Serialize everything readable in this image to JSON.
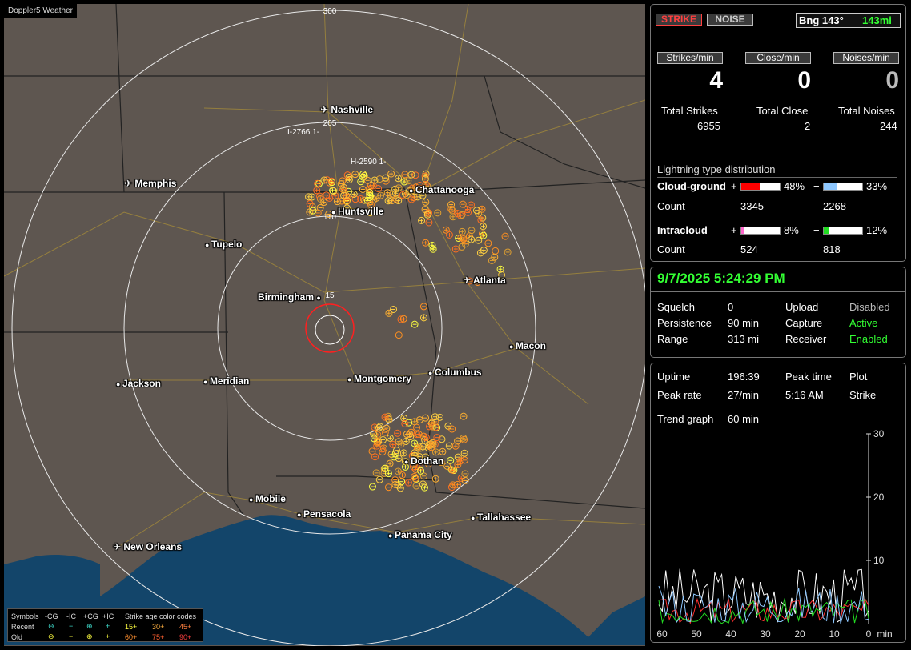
{
  "window_title": "Doppler5 Weather",
  "map": {
    "range_rings": [
      "300",
      "205",
      "110",
      "15"
    ],
    "cities": [
      {
        "name": "Nashville",
        "type": "airport"
      },
      {
        "name": "Memphis",
        "type": "airport"
      },
      {
        "name": "Chattanooga",
        "type": "city"
      },
      {
        "name": "Huntsville",
        "type": "city"
      },
      {
        "name": "Tupelo",
        "type": "city"
      },
      {
        "name": "Birmingham",
        "type": "city"
      },
      {
        "name": "Atlanta",
        "type": "airport"
      },
      {
        "name": "Macon",
        "type": "city"
      },
      {
        "name": "Columbus",
        "type": "city"
      },
      {
        "name": "Montgomery",
        "type": "city"
      },
      {
        "name": "Jackson",
        "type": "city"
      },
      {
        "name": "Meridian",
        "type": "city"
      },
      {
        "name": "Dothan",
        "type": "city"
      },
      {
        "name": "Mobile",
        "type": "city"
      },
      {
        "name": "Pensacola",
        "type": "city"
      },
      {
        "name": "Tallahassee",
        "type": "city"
      },
      {
        "name": "Panama City",
        "type": "city"
      },
      {
        "name": "New Orleans",
        "type": "airport"
      }
    ],
    "storm_tags": [
      "I-2766 1-",
      "H-2590 1-"
    ]
  },
  "legend": {
    "symbols_label": "Symbols",
    "col_neg_cg": "-CG",
    "col_neg_ic": "-IC",
    "col_pos_cg": "+CG",
    "col_pos_ic": "+IC",
    "recent": "Recent",
    "old": "Old",
    "age_title": "Strike age color codes",
    "ages_recent": [
      "15+",
      "30+",
      "45+"
    ],
    "ages_old": [
      "60+",
      "75+",
      "90+"
    ]
  },
  "top": {
    "strike_btn": "STRIKE",
    "noise_btn": "NOISE",
    "bearing": "Bng 143°",
    "distance": "143mi",
    "strikes_min_label": "Strikes/min",
    "strikes_min": "4",
    "close_min_label": "Close/min",
    "close_min": "0",
    "noises_min_label": "Noises/min",
    "noises_min": "0",
    "total_strikes_label": "Total Strikes",
    "total_strikes": "6955",
    "total_close_label": "Total Close",
    "total_close": "2",
    "total_noises_label": "Total Noises",
    "total_noises": "244",
    "dist_title": "Lightning type distribution",
    "cg_label": "Cloud-ground",
    "cg_pos_pct": "48%",
    "cg_neg_pct": "33%",
    "cg_pos_fraction": 0.48,
    "cg_neg_fraction": 0.33,
    "count_label": "Count",
    "cg_pos_count": "3345",
    "cg_neg_count": "2268",
    "ic_label": "Intracloud",
    "ic_pos_pct": "8%",
    "ic_neg_pct": "12%",
    "ic_pos_fraction": 0.08,
    "ic_neg_fraction": 0.12,
    "ic_pos_count": "524",
    "ic_neg_count": "818",
    "plus": "+",
    "minus": "−",
    "colors": {
      "cg_pos": "#ff0000",
      "cg_neg": "#8ec8ff",
      "ic_pos": "#ff66cc",
      "ic_neg": "#22dd22"
    }
  },
  "status": {
    "datetime": "9/7/2025 5:24:29 PM",
    "squelch_label": "Squelch",
    "squelch": "0",
    "upload_label": "Upload",
    "upload": "Disabled",
    "persistence_label": "Persistence",
    "persistence": "90 min",
    "capture_label": "Capture",
    "capture": "Active",
    "range_label": "Range",
    "range": "313 mi",
    "receiver_label": "Receiver",
    "receiver": "Enabled"
  },
  "trend": {
    "uptime_label": "Uptime",
    "uptime": "196:39",
    "peak_time_label": "Peak time",
    "plot_label": "Plot",
    "peak_rate_label": "Peak rate",
    "peak_rate": "27/min",
    "peak_time": "5:16 AM",
    "plot": "Strike",
    "trend_label": "Trend graph",
    "trend_window": "60 min",
    "y_ticks": [
      "30",
      "20",
      "10"
    ],
    "x_ticks": [
      "60",
      "50",
      "40",
      "30",
      "20",
      "10",
      "0"
    ],
    "x_unit": "min"
  }
}
